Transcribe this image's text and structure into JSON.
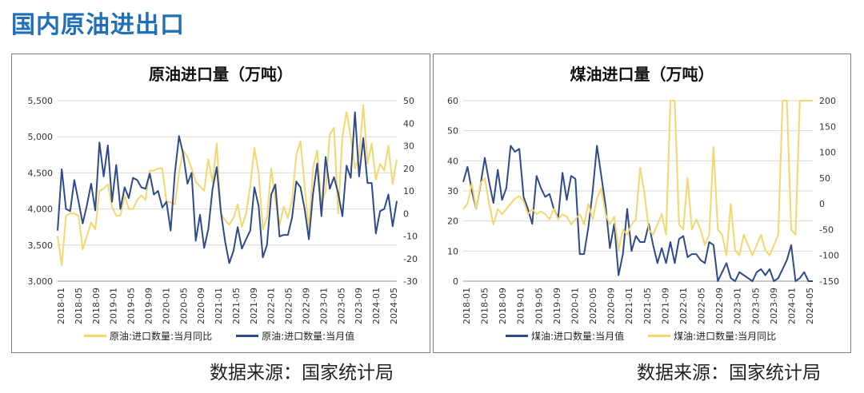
{
  "page_title": "国内原油进出口",
  "colors": {
    "accent": "#1F6FB9",
    "navy": "#2E4A8F",
    "gold": "#F5D76E"
  },
  "chart_data": [
    {
      "type": "line",
      "title": "原油进口量（万吨）",
      "x_ticks": [
        "2018-01",
        "2018-05",
        "2018-09",
        "2019-01",
        "2019-05",
        "2019-09",
        "2020-01",
        "2020-05",
        "2020-09",
        "2021-01",
        "2021-05",
        "2021-09",
        "2022-01",
        "2022-05",
        "2022-09",
        "2023-01",
        "2023-05",
        "2023-09",
        "2024-01",
        "2024-05"
      ],
      "left_axis": {
        "min": 3000,
        "max": 5500,
        "ticks": [
          "3,000",
          "3,500",
          "4,000",
          "4,500",
          "5,000",
          "5,500"
        ]
      },
      "right_axis": {
        "min": -30,
        "max": 50,
        "ticks": [
          "-30",
          "-20",
          "-10",
          "0",
          "10",
          "20",
          "30",
          "40",
          "50"
        ]
      },
      "series": [
        {
          "name": "原油:进口数量:当月值",
          "axis": "left",
          "color": "#2E4A8F",
          "values": [
            3700,
            4550,
            4000,
            3970,
            4400,
            4100,
            3800,
            4050,
            4350,
            3980,
            4920,
            4450,
            4880,
            4100,
            4610,
            4000,
            4300,
            4150,
            4430,
            4400,
            4300,
            4280,
            4490,
            4200,
            4250,
            4020,
            4100,
            3700,
            4500,
            5010,
            4760,
            4350,
            4500,
            3560,
            3920,
            3460,
            3720,
            4280,
            4580,
            3960,
            3550,
            3250,
            3420,
            3750,
            3450,
            3580,
            3700,
            4300,
            4040,
            3330,
            3500,
            4200,
            4340,
            3620,
            3640,
            3640,
            3880,
            4380,
            4300,
            4000,
            3580,
            4210,
            4630,
            3900,
            4720,
            4280,
            4440,
            4220,
            3900,
            4600,
            4430,
            5340,
            4450,
            4980,
            4360,
            4360,
            3660,
            3970,
            4000,
            4200,
            3760,
            4110
          ]
        },
        {
          "name": "原油:进口数量:当月同比",
          "axis": "right",
          "color": "#F5D76E",
          "values": [
            -10,
            -23,
            -1,
            0,
            0,
            -1,
            -16,
            -10,
            -4,
            -7,
            10,
            11,
            13,
            3,
            -1,
            -1,
            8,
            2,
            2,
            6,
            8,
            6,
            19,
            19,
            20,
            20,
            5,
            5,
            4,
            18,
            28,
            25,
            20,
            14,
            12,
            10,
            24,
            14,
            31,
            0,
            -3,
            -5,
            -2,
            4,
            -6,
            0,
            12,
            29,
            18,
            -7,
            -2,
            20,
            6,
            -5,
            3,
            -2,
            6,
            26,
            32,
            12,
            -7,
            20,
            28,
            4,
            10,
            35,
            38,
            0,
            34,
            45,
            34,
            20,
            25,
            48,
            22,
            31,
            15,
            22,
            19,
            30,
            13,
            24
          ]
        }
      ],
      "legend": [
        "原油:进口数量:当月值",
        "原油:进口数量:当月同比"
      ],
      "source": "数据来源：国家统计局"
    },
    {
      "type": "line",
      "title": "煤油进口量（万吨）",
      "x_ticks": [
        "2018-01",
        "2018-05",
        "2018-09",
        "2019-01",
        "2019-05",
        "2019-09",
        "2020-01",
        "2020-05",
        "2020-09",
        "2021-01",
        "2021-05",
        "2021-09",
        "2022-01",
        "2022-05",
        "2022-09",
        "2023-01",
        "2023-05",
        "2023-09",
        "2024-01",
        "2024-05"
      ],
      "left_axis": {
        "min": 0,
        "max": 60,
        "ticks": [
          "0",
          "10",
          "20",
          "30",
          "40",
          "50",
          "60"
        ]
      },
      "right_axis": {
        "min": -150,
        "max": 200,
        "ticks": [
          "-150",
          "-100",
          "-50",
          "0",
          "50",
          "100",
          "150",
          "200"
        ]
      },
      "series": [
        {
          "name": "煤油:进口数量:当月值",
          "axis": "left",
          "color": "#2E4A8F",
          "values": [
            33,
            38,
            30,
            24,
            32,
            41,
            33,
            26,
            37,
            27,
            31,
            45,
            43,
            44,
            28,
            24,
            19,
            35,
            31,
            28,
            29,
            24,
            21,
            36,
            27,
            35,
            34,
            9,
            9,
            18,
            30,
            45,
            35,
            25,
            11,
            19,
            2,
            9,
            24,
            10,
            15,
            13,
            13,
            19,
            12,
            6,
            11,
            6,
            13,
            6,
            14,
            15,
            8,
            9,
            9,
            7,
            6,
            13,
            12,
            0,
            3,
            6,
            1,
            0,
            3,
            2,
            1,
            0,
            3,
            4,
            2,
            4,
            0,
            1,
            4,
            7,
            12,
            0,
            1,
            3,
            0,
            0
          ]
        },
        {
          "name": "煤油:进口数量:当月同比",
          "axis": "right",
          "color": "#F5D76E",
          "values": [
            -10,
            0,
            40,
            -10,
            40,
            50,
            0,
            -40,
            -10,
            -20,
            -10,
            0,
            10,
            15,
            5,
            -20,
            -10,
            -20,
            -15,
            -20,
            -30,
            -10,
            -30,
            -20,
            -25,
            -40,
            -30,
            -20,
            -40,
            0,
            -30,
            10,
            30,
            -20,
            -40,
            -25,
            -90,
            -50,
            -60,
            -40,
            -30,
            70,
            20,
            -50,
            -60,
            -40,
            -20,
            -60,
            200,
            200,
            -40,
            -50,
            50,
            -50,
            -30,
            -50,
            -80,
            -60,
            110,
            -50,
            -60,
            -100,
            0,
            -90,
            -100,
            -60,
            -80,
            -100,
            -80,
            -60,
            -90,
            -100,
            -80,
            -60,
            200,
            200,
            -50,
            -60,
            200,
            200,
            200,
            200
          ]
        }
      ],
      "legend": [
        "煤油:进口数量:当月值",
        "煤油:进口数量:当月同比"
      ],
      "source": "数据来源：国家统计局"
    }
  ]
}
